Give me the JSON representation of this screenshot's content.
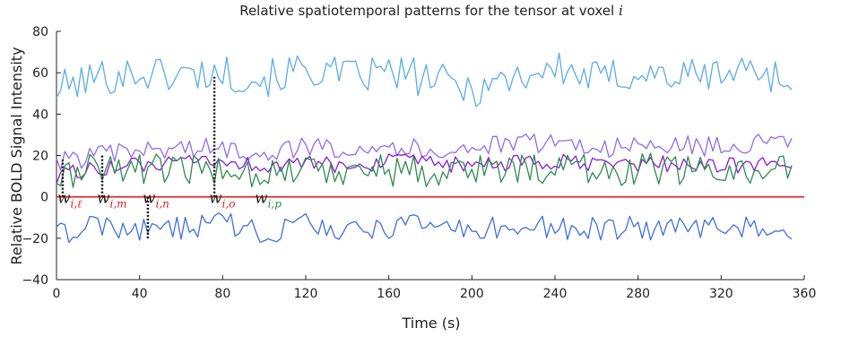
{
  "chart_data": {
    "type": "line",
    "title": "Relative spatiotemporal patterns for the tensor at voxel ",
    "title_var": "i",
    "xlabel": "Time (s)",
    "ylabel": "Relative BOLD Signal Intensity",
    "xlim": [
      0,
      360
    ],
    "ylim": [
      -40,
      80
    ],
    "xticks": [
      "0",
      "40",
      "80",
      "120",
      "160",
      "200",
      "240",
      "280",
      "320",
      "360"
    ],
    "yticks": [
      "80",
      "60",
      "40",
      "20",
      "0",
      "−20",
      "−40"
    ],
    "grid": false,
    "baseline": {
      "y": 0,
      "color": "#e41a1c"
    },
    "series": [
      {
        "color": "#5aace8",
        "x": [
          0,
          20,
          40,
          60,
          80,
          100,
          120,
          140,
          160,
          180,
          200,
          220,
          240,
          260,
          280,
          300,
          320,
          340,
          354
        ],
        "y": [
          52,
          58,
          60,
          59,
          60,
          57,
          62,
          58,
          60,
          57,
          52,
          58,
          62,
          57,
          60,
          58,
          60,
          62,
          53
        ]
      },
      {
        "color": "#8e6cf0",
        "x": [
          0,
          20,
          40,
          60,
          80,
          100,
          120,
          140,
          160,
          180,
          200,
          220,
          240,
          260,
          280,
          300,
          320,
          340,
          354
        ],
        "y": [
          17,
          20,
          22,
          24,
          23,
          22,
          24,
          24,
          25,
          22,
          24,
          25,
          27,
          24,
          24,
          25,
          24,
          26,
          25
        ]
      },
      {
        "color": "#8b1bd6",
        "x": [
          0,
          20,
          40,
          60,
          80,
          100,
          120,
          140,
          160,
          180,
          200,
          220,
          240,
          260,
          280,
          300,
          320,
          340,
          354
        ],
        "y": [
          10,
          14,
          15,
          16,
          17,
          15,
          16,
          15,
          17,
          16,
          15,
          16,
          17,
          15,
          16,
          16,
          15,
          16,
          16
        ]
      },
      {
        "color": "#2e8b4f",
        "x": [
          0,
          20,
          40,
          60,
          80,
          100,
          120,
          140,
          160,
          180,
          200,
          220,
          240,
          260,
          280,
          300,
          320,
          340,
          354
        ],
        "y": [
          8,
          15,
          14,
          12,
          14,
          12,
          13,
          14,
          13,
          12,
          14,
          13,
          15,
          12,
          14,
          13,
          12,
          14,
          13
        ]
      },
      {
        "color": "#3f6fe0",
        "x": [
          0,
          20,
          40,
          60,
          80,
          100,
          120,
          140,
          160,
          180,
          200,
          220,
          240,
          260,
          280,
          300,
          320,
          340,
          354
        ],
        "y": [
          -18,
          -14,
          -16,
          -15,
          -13,
          -17,
          -14,
          -16,
          -15,
          -14,
          -16,
          -15,
          -14,
          -16,
          -15,
          -16,
          -14,
          -15,
          -15
        ]
      }
    ],
    "annotations": [
      {
        "base": "w",
        "sub": "i,ℓ",
        "sub_color": "#e41a1c",
        "x": 3,
        "y_from": 0,
        "y_to": 18
      },
      {
        "base": "w",
        "sub": "i,m",
        "sub_color": "#e41a1c",
        "x": 22,
        "y_from": 0,
        "y_to": 20
      },
      {
        "base": "w",
        "sub": "i,n",
        "sub_color": "#e41a1c",
        "x": 44,
        "y_from": -20,
        "y_to": 0
      },
      {
        "base": "w",
        "sub": "i,o",
        "sub_color": "#e41a1c",
        "x": 76,
        "y_from": 0,
        "y_to": 58
      },
      {
        "base": "w",
        "sub": "i,p",
        "sub_color": "#2e8b4f",
        "x": 98,
        "y_from": 0,
        "y_to": 0
      }
    ]
  }
}
